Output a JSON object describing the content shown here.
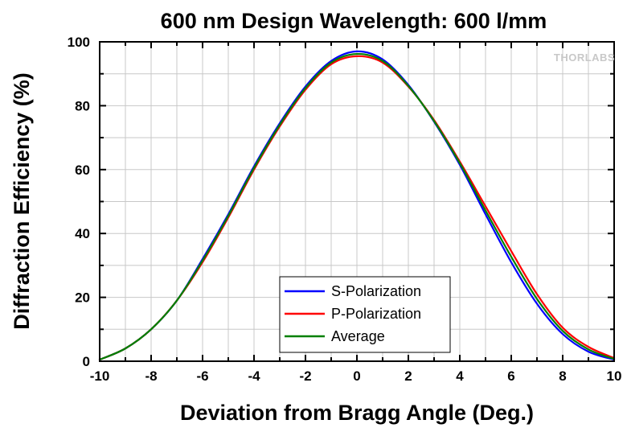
{
  "logo": "THORLABS",
  "colors": {
    "grid": "#c8c8c8",
    "axis": "#000000"
  },
  "chart_data": {
    "type": "line",
    "title": "600 nm Design Wavelength: 600 l/mm",
    "xlabel": "Deviation from Bragg Angle (Deg.)",
    "ylabel": "Diffraction Efficiency (%)",
    "xlim": [
      -10,
      10
    ],
    "ylim": [
      0,
      100
    ],
    "x_ticks": [
      -10,
      -8,
      -6,
      -4,
      -2,
      0,
      2,
      4,
      6,
      8,
      10
    ],
    "y_ticks": [
      0,
      20,
      40,
      60,
      80,
      100
    ],
    "grid": true,
    "legend_position": "bottom-center",
    "x": [
      -10,
      -9,
      -8,
      -7,
      -6,
      -5,
      -4,
      -3,
      -2,
      -1,
      0,
      1,
      2,
      3,
      4,
      5,
      6,
      7,
      8,
      9,
      10
    ],
    "series": [
      {
        "name": "S-Polarization",
        "color": "#0000ff",
        "values": [
          0.5,
          4,
          10,
          19,
          32,
          46,
          61,
          74.5,
          86,
          94,
          97,
          94.5,
          86.5,
          75,
          61.5,
          46,
          31,
          18,
          8.5,
          3,
          0.5
        ]
      },
      {
        "name": "P-Polarization",
        "color": "#ff0000",
        "values": [
          0.5,
          4,
          10,
          19,
          31,
          45,
          60,
          73.5,
          85,
          93,
          95.5,
          93.5,
          86,
          75.5,
          62.5,
          48.5,
          34.5,
          21,
          10.5,
          4.5,
          1
        ]
      },
      {
        "name": "Average",
        "color": "#008000",
        "values": [
          0.5,
          4,
          10,
          19,
          31.5,
          45.5,
          60.5,
          74,
          85.5,
          93.5,
          96.2,
          94,
          86.2,
          75.2,
          62,
          47.2,
          32.7,
          19.5,
          9.5,
          3.7,
          0.7
        ]
      }
    ]
  }
}
